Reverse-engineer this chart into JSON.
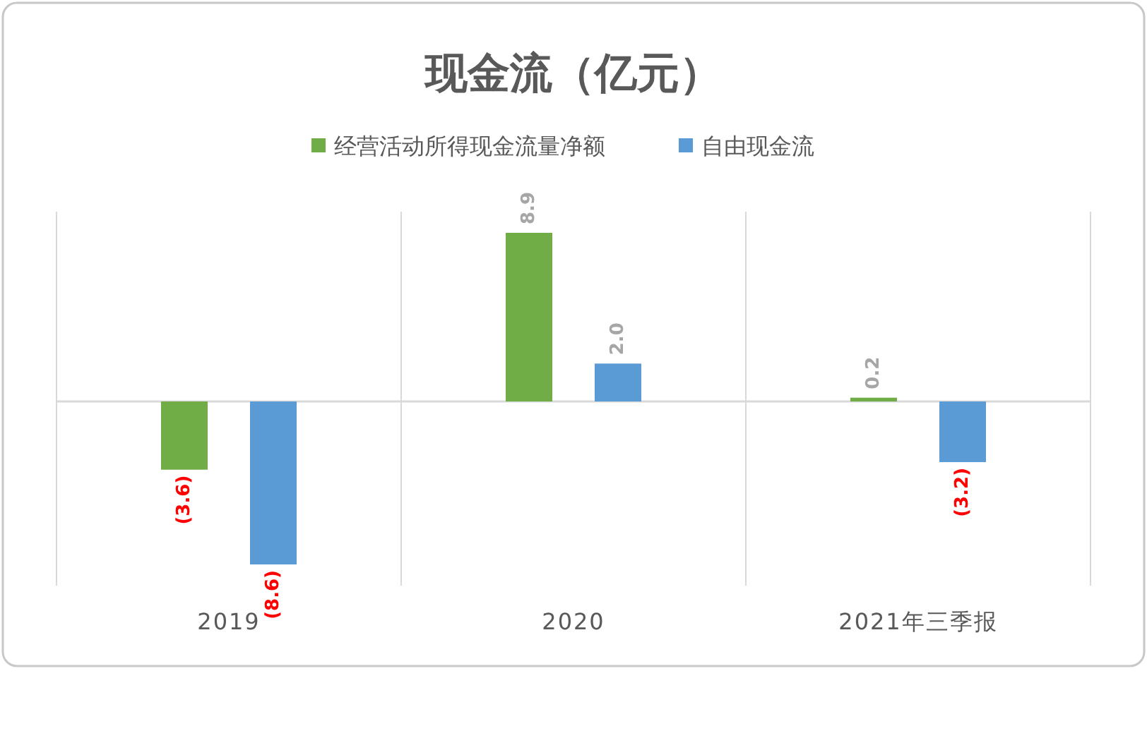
{
  "chart_data": {
    "type": "bar",
    "title": "现金流（亿元）",
    "categories": [
      "2019",
      "2020",
      "2021年三季报"
    ],
    "series": [
      {
        "name": "经营活动所得现金流量净额",
        "color": "#70ad47",
        "values": [
          -3.6,
          8.9,
          0.2
        ],
        "value_labels": [
          "(3.6)",
          "8.9",
          "0.2"
        ]
      },
      {
        "name": "自由现金流",
        "color": "#5b9bd5",
        "values": [
          -8.6,
          2.0,
          -3.2
        ],
        "value_labels": [
          "(8.6)",
          "2.0",
          "(3.2)"
        ]
      }
    ],
    "legend": "top"
  }
}
